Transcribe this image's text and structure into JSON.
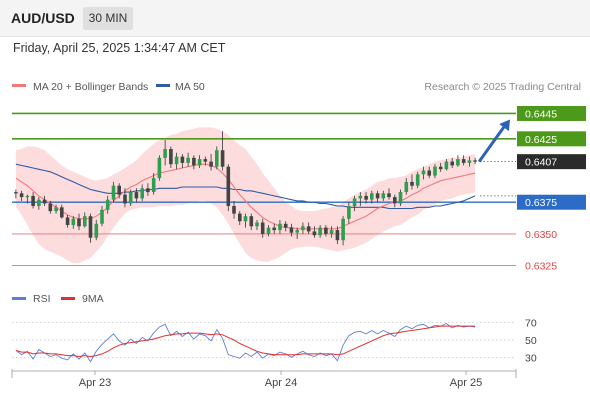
{
  "header": {
    "symbol": "AUD/USD",
    "interval": "30 MIN"
  },
  "datetime": "Friday, April 25, 2025 1:34:47 AM CET",
  "legend": {
    "ma20": "MA 20 + Bollinger Bands",
    "ma50": "MA 50"
  },
  "credit": "Research © 2025 Trading Central",
  "rsi_legend": {
    "rsi": "RSI",
    "ma": "9MA"
  },
  "colors": {
    "ma20": "#f07a7a",
    "band_fill": "#fcd6d6",
    "ma50": "#2e5aa6",
    "up": "#2e9f4f",
    "down": "#444444",
    "resistance": "#4d9a1a",
    "support_blue": "#2d6cc6",
    "support_red": "#e07575",
    "arrow": "#2c62b8",
    "rsi": "#5b7fd8",
    "rsi_ma": "#e03030",
    "price_bg": "#2b2b2b"
  },
  "chart_data": [
    {
      "type": "candlestick",
      "title": "AUD/USD",
      "interval": "30 MIN",
      "x": {
        "ticks": [
          "Apr 23",
          "Apr 24",
          "Apr 25"
        ]
      },
      "y": {
        "range": [
          0.6316,
          0.6458
        ]
      },
      "candles": [
        [
          0.6383,
          0.6385,
          0.6378,
          0.6382
        ],
        [
          0.6382,
          0.6384,
          0.6376,
          0.6379
        ],
        [
          0.6379,
          0.6381,
          0.6374,
          0.638
        ],
        [
          0.638,
          0.6383,
          0.637,
          0.6372
        ],
        [
          0.6372,
          0.6379,
          0.6369,
          0.6377
        ],
        [
          0.6377,
          0.638,
          0.6372,
          0.6374
        ],
        [
          0.6374,
          0.6376,
          0.6366,
          0.6368
        ],
        [
          0.6368,
          0.6373,
          0.6366,
          0.6371
        ],
        [
          0.6371,
          0.6373,
          0.6362,
          0.6363
        ],
        [
          0.6363,
          0.6365,
          0.6355,
          0.6357
        ],
        [
          0.6357,
          0.6364,
          0.6354,
          0.6362
        ],
        [
          0.6362,
          0.6366,
          0.6353,
          0.6356
        ],
        [
          0.6356,
          0.6367,
          0.6355,
          0.6364
        ],
        [
          0.6364,
          0.6366,
          0.6343,
          0.6347
        ],
        [
          0.6347,
          0.6361,
          0.6345,
          0.6358
        ],
        [
          0.6358,
          0.6372,
          0.6356,
          0.6369
        ],
        [
          0.6369,
          0.638,
          0.6366,
          0.6377
        ],
        [
          0.6377,
          0.6391,
          0.6375,
          0.6388
        ],
        [
          0.6388,
          0.639,
          0.6378,
          0.6381
        ],
        [
          0.6381,
          0.6386,
          0.6371,
          0.6374
        ],
        [
          0.6374,
          0.6385,
          0.6372,
          0.6383
        ],
        [
          0.6383,
          0.6386,
          0.6375,
          0.6378
        ],
        [
          0.6378,
          0.6389,
          0.6376,
          0.6386
        ],
        [
          0.6386,
          0.639,
          0.638,
          0.6383
        ],
        [
          0.6383,
          0.6398,
          0.6381,
          0.6394
        ],
        [
          0.6394,
          0.6412,
          0.6392,
          0.641
        ],
        [
          0.641,
          0.6424,
          0.6404,
          0.6417
        ],
        [
          0.6417,
          0.6419,
          0.6402,
          0.6405
        ],
        [
          0.6405,
          0.6414,
          0.6401,
          0.6411
        ],
        [
          0.6411,
          0.6413,
          0.6402,
          0.6406
        ],
        [
          0.6406,
          0.6414,
          0.6403,
          0.641
        ],
        [
          0.641,
          0.6412,
          0.6401,
          0.6404
        ],
        [
          0.6404,
          0.6412,
          0.6402,
          0.6409
        ],
        [
          0.6409,
          0.6411,
          0.6404,
          0.6407
        ],
        [
          0.6407,
          0.6413,
          0.64,
          0.6403
        ],
        [
          0.6403,
          0.6419,
          0.6401,
          0.6416
        ],
        [
          0.6416,
          0.6431,
          0.64,
          0.6403
        ],
        [
          0.6403,
          0.6405,
          0.6368,
          0.6372
        ],
        [
          0.6372,
          0.6376,
          0.6362,
          0.6366
        ],
        [
          0.6366,
          0.6368,
          0.6357,
          0.636
        ],
        [
          0.636,
          0.6366,
          0.6355,
          0.6364
        ],
        [
          0.6364,
          0.6366,
          0.6353,
          0.6356
        ],
        [
          0.6356,
          0.6361,
          0.6353,
          0.6359
        ],
        [
          0.6359,
          0.6362,
          0.6347,
          0.635
        ],
        [
          0.635,
          0.6357,
          0.6348,
          0.6355
        ],
        [
          0.6355,
          0.6358,
          0.635,
          0.6353
        ],
        [
          0.6353,
          0.6361,
          0.635,
          0.6358
        ],
        [
          0.6358,
          0.636,
          0.6352,
          0.6355
        ],
        [
          0.6355,
          0.6358,
          0.6348,
          0.6351
        ],
        [
          0.6351,
          0.6355,
          0.6346,
          0.6353
        ],
        [
          0.6353,
          0.6359,
          0.635,
          0.6356
        ],
        [
          0.6356,
          0.6359,
          0.635,
          0.6352
        ],
        [
          0.6352,
          0.6356,
          0.6347,
          0.6349
        ],
        [
          0.6349,
          0.6357,
          0.6347,
          0.6355
        ],
        [
          0.6355,
          0.6357,
          0.6348,
          0.635
        ],
        [
          0.635,
          0.6356,
          0.6347,
          0.6353
        ],
        [
          0.6353,
          0.6356,
          0.6342,
          0.6345
        ],
        [
          0.6345,
          0.6364,
          0.6341,
          0.6362
        ],
        [
          0.6362,
          0.6375,
          0.6358,
          0.6372
        ],
        [
          0.6372,
          0.638,
          0.6368,
          0.6378
        ],
        [
          0.6378,
          0.6383,
          0.6372,
          0.638
        ],
        [
          0.638,
          0.6383,
          0.6374,
          0.6377
        ],
        [
          0.6377,
          0.6384,
          0.6374,
          0.6382
        ],
        [
          0.6382,
          0.6384,
          0.6375,
          0.6378
        ],
        [
          0.6378,
          0.6384,
          0.6376,
          0.6382
        ],
        [
          0.6382,
          0.6386,
          0.6377,
          0.6379
        ],
        [
          0.6379,
          0.6381,
          0.6371,
          0.6374
        ],
        [
          0.6374,
          0.6385,
          0.6372,
          0.6383
        ],
        [
          0.6383,
          0.6394,
          0.6381,
          0.6391
        ],
        [
          0.6391,
          0.6397,
          0.6385,
          0.6388
        ],
        [
          0.6388,
          0.6399,
          0.6386,
          0.6397
        ],
        [
          0.6397,
          0.6403,
          0.6393,
          0.64
        ],
        [
          0.64,
          0.6403,
          0.6394,
          0.6396
        ],
        [
          0.6396,
          0.6405,
          0.6394,
          0.6403
        ],
        [
          0.6403,
          0.6406,
          0.6399,
          0.6401
        ],
        [
          0.6401,
          0.6409,
          0.64,
          0.6407
        ],
        [
          0.6407,
          0.641,
          0.6402,
          0.6404
        ],
        [
          0.6404,
          0.6412,
          0.6403,
          0.6409
        ],
        [
          0.6409,
          0.6412,
          0.6404,
          0.6406
        ],
        [
          0.6406,
          0.6411,
          0.6403,
          0.6408
        ],
        [
          0.6408,
          0.641,
          0.6405,
          0.6407
        ]
      ],
      "ma20": [
        0.6394,
        0.6391,
        0.6388,
        0.6384,
        0.638,
        0.6377,
        0.6374,
        0.6371,
        0.6368,
        0.6365,
        0.6363,
        0.6362,
        0.6362,
        0.6362,
        0.6364,
        0.6367,
        0.6371,
        0.6376,
        0.638,
        0.6384,
        0.6387,
        0.6389,
        0.6392,
        0.6394,
        0.6396,
        0.6398,
        0.6399,
        0.64,
        0.6401,
        0.6402,
        0.6403,
        0.6404,
        0.6405,
        0.6405,
        0.6404,
        0.6402,
        0.6398,
        0.6393,
        0.6387,
        0.6381,
        0.6376,
        0.6371,
        0.6367,
        0.6363,
        0.636,
        0.6358,
        0.6356,
        0.6355,
        0.6355,
        0.6354,
        0.6354,
        0.6354,
        0.6354,
        0.6354,
        0.6354,
        0.6354,
        0.6354,
        0.6356,
        0.6358,
        0.636,
        0.6362,
        0.6364,
        0.6367,
        0.637,
        0.6372,
        0.6374,
        0.6375,
        0.6376,
        0.6378,
        0.6381,
        0.6383,
        0.6386,
        0.6388,
        0.639,
        0.6392,
        0.6393,
        0.6394,
        0.6395,
        0.6396,
        0.6397,
        0.6398
      ],
      "ma50": [
        0.6405,
        0.6404,
        0.6403,
        0.6402,
        0.6401,
        0.64,
        0.6399,
        0.6397,
        0.6395,
        0.6393,
        0.6391,
        0.6389,
        0.6387,
        0.6385,
        0.6384,
        0.6383,
        0.6382,
        0.6382,
        0.6382,
        0.6383,
        0.6383,
        0.6384,
        0.6384,
        0.6385,
        0.6385,
        0.6386,
        0.6386,
        0.6386,
        0.6386,
        0.6387,
        0.6387,
        0.6387,
        0.6387,
        0.6387,
        0.6387,
        0.6387,
        0.6386,
        0.6386,
        0.6385,
        0.6385,
        0.6384,
        0.6384,
        0.6383,
        0.6382,
        0.6381,
        0.638,
        0.6379,
        0.6378,
        0.6377,
        0.6376,
        0.6376,
        0.6375,
        0.6375,
        0.6374,
        0.6374,
        0.6373,
        0.6372,
        0.6372,
        0.6371,
        0.6371,
        0.6371,
        0.6371,
        0.6371,
        0.6371,
        0.6371,
        0.637,
        0.637,
        0.637,
        0.637,
        0.637,
        0.6371,
        0.6371,
        0.6371,
        0.6372,
        0.6372,
        0.6373,
        0.6374,
        0.6375,
        0.6376,
        0.6378,
        0.638
      ],
      "bollinger_width": [
        0.0022,
        0.0026,
        0.0031,
        0.0035,
        0.0038,
        0.0039,
        0.0038,
        0.0037,
        0.0036,
        0.0036,
        0.0036,
        0.0035,
        0.0033,
        0.0031,
        0.0028,
        0.0026,
        0.0023,
        0.0021,
        0.0019,
        0.0018,
        0.0018,
        0.0019,
        0.0021,
        0.0023,
        0.0025,
        0.0026,
        0.0027,
        0.0028,
        0.0028,
        0.0029,
        0.0029,
        0.0029,
        0.0029,
        0.0029,
        0.003,
        0.0031,
        0.0033,
        0.0035,
        0.0037,
        0.0039,
        0.0041,
        0.004,
        0.0038,
        0.0035,
        0.0032,
        0.0028,
        0.0024,
        0.002,
        0.0017,
        0.0015,
        0.0014,
        0.0014,
        0.0014,
        0.0015,
        0.0016,
        0.0017,
        0.0018,
        0.0019,
        0.002,
        0.0021,
        0.0021,
        0.0021,
        0.0021,
        0.0021,
        0.002,
        0.002,
        0.0019,
        0.0019,
        0.0018,
        0.0018,
        0.0018,
        0.0017,
        0.0017,
        0.0017,
        0.0016,
        0.0016,
        0.0016,
        0.0015,
        0.0015,
        0.0015,
        0.0015
      ],
      "levels": [
        {
          "label": "0.6445",
          "value": 0.6445,
          "kind": "resistance"
        },
        {
          "label": "0.6425",
          "value": 0.6425,
          "kind": "resistance"
        },
        {
          "label": "0.6407",
          "value": 0.6407,
          "kind": "last_price"
        },
        {
          "label": "0.6375",
          "value": 0.6375,
          "kind": "support_pivot"
        },
        {
          "label": "0.6350",
          "value": 0.635,
          "kind": "support"
        },
        {
          "label": "0.6325",
          "value": 0.6325,
          "kind": "support"
        }
      ],
      "forecast_target": 0.6445
    },
    {
      "type": "line",
      "title": "RSI",
      "y": {
        "ticks": [
          70,
          50,
          30
        ],
        "range": [
          20,
          80
        ]
      },
      "series": [
        {
          "name": "RSI",
          "values": [
            38,
            33,
            37,
            28,
            39,
            35,
            31,
            33,
            29,
            27,
            34,
            28,
            35,
            25,
            37,
            45,
            51,
            57,
            49,
            44,
            51,
            46,
            53,
            49,
            58,
            65,
            68,
            55,
            60,
            54,
            59,
            51,
            57,
            55,
            49,
            62,
            52,
            33,
            31,
            29,
            35,
            31,
            36,
            29,
            34,
            32,
            36,
            34,
            30,
            34,
            37,
            33,
            31,
            35,
            32,
            34,
            26,
            44,
            55,
            59,
            60,
            57,
            61,
            57,
            61,
            58,
            54,
            62,
            66,
            63,
            67,
            68,
            64,
            67,
            66,
            69,
            64,
            67,
            65,
            66,
            65
          ]
        },
        {
          "name": "9MA",
          "values": [
            38,
            36,
            36,
            34,
            35,
            35,
            34,
            34,
            33,
            32,
            32,
            31,
            32,
            31,
            32,
            34,
            37,
            41,
            44,
            46,
            47,
            48,
            49,
            50,
            51,
            53,
            55,
            56,
            57,
            57,
            58,
            58,
            58,
            57,
            56,
            57,
            56,
            53,
            50,
            46,
            43,
            40,
            37,
            35,
            34,
            33,
            33,
            33,
            33,
            33,
            34,
            34,
            34,
            34,
            34,
            34,
            33,
            34,
            37,
            40,
            43,
            46,
            49,
            52,
            55,
            57,
            58,
            59,
            60,
            61,
            62,
            63,
            64,
            65,
            66,
            66,
            66,
            66,
            66,
            66,
            66
          ]
        }
      ]
    }
  ]
}
